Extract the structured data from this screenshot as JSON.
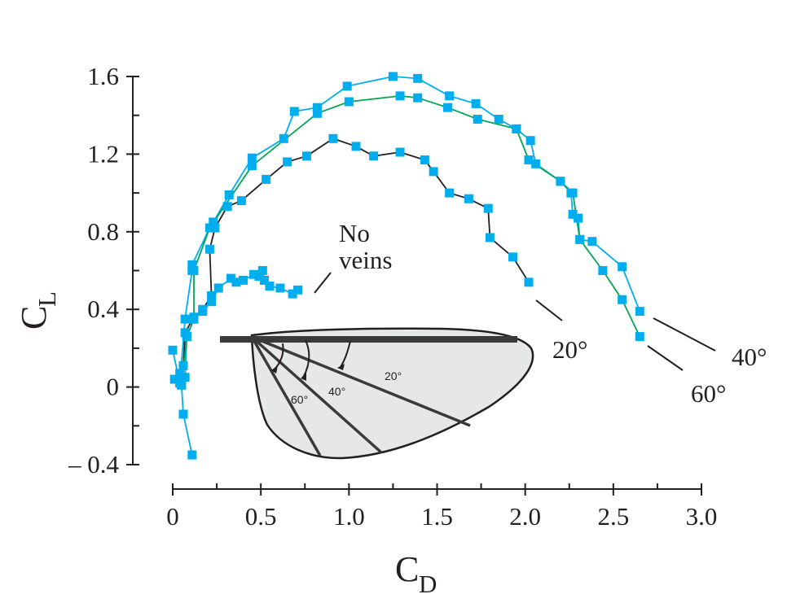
{
  "chart_data": {
    "type": "line",
    "title": "",
    "xlabel": "C",
    "xlabel_sub": "D",
    "ylabel": "C",
    "ylabel_sub": "L",
    "xlim": [
      0,
      3.0
    ],
    "ylim": [
      -0.4,
      1.6
    ],
    "x_ticks": [
      0,
      0.5,
      1.0,
      1.5,
      2.0,
      2.5,
      3.0
    ],
    "x_tick_labels": [
      "0",
      "0.5",
      "1.0",
      "1.5",
      "2.0",
      "2.5",
      "3.0"
    ],
    "x_minor_ticks": [
      0.25,
      0.75,
      1.25,
      1.75,
      2.25,
      2.75
    ],
    "y_ticks": [
      -0.4,
      0,
      0.4,
      0.8,
      1.2,
      1.6
    ],
    "y_tick_labels": [
      "– 0.4",
      "0",
      "0.4",
      "0.8",
      "1.2",
      "1.6"
    ],
    "y_minor_ticks": [
      -0.2,
      0.2,
      0.6,
      1.0,
      1.4
    ],
    "grid": false,
    "marker_color": "#00aeef",
    "series": [
      {
        "name": "No veins",
        "line_color": "#00aeef",
        "points": [
          [
            0.11,
            -0.35
          ],
          [
            0.06,
            -0.14
          ],
          [
            0.05,
            0.01
          ],
          [
            0.04,
            0.07
          ],
          [
            0.07,
            0.05
          ],
          [
            0.08,
            0.26
          ],
          [
            0.12,
            0.35
          ],
          [
            0.17,
            0.39
          ],
          [
            0.22,
            0.44
          ],
          [
            0.26,
            0.51
          ],
          [
            0.33,
            0.56
          ],
          [
            0.36,
            0.54
          ],
          [
            0.4,
            0.55
          ],
          [
            0.46,
            0.58
          ],
          [
            0.49,
            0.57
          ],
          [
            0.51,
            0.6
          ],
          [
            0.52,
            0.55
          ],
          [
            0.55,
            0.52
          ],
          [
            0.61,
            0.51
          ],
          [
            0.68,
            0.48
          ],
          [
            0.71,
            0.5
          ]
        ]
      },
      {
        "name": "20°",
        "line_color": "#231f20",
        "points": [
          [
            0.01,
            0.04
          ],
          [
            0.06,
            0.11
          ],
          [
            0.07,
            0.28
          ],
          [
            0.12,
            0.36
          ],
          [
            0.17,
            0.4
          ],
          [
            0.22,
            0.47
          ],
          [
            0.21,
            0.71
          ],
          [
            0.24,
            0.82
          ],
          [
            0.31,
            0.93
          ],
          [
            0.39,
            0.96
          ],
          [
            0.53,
            1.07
          ],
          [
            0.65,
            1.16
          ],
          [
            0.76,
            1.19
          ],
          [
            0.91,
            1.28
          ],
          [
            1.04,
            1.24
          ],
          [
            1.14,
            1.19
          ],
          [
            1.29,
            1.21
          ],
          [
            1.43,
            1.17
          ],
          [
            1.48,
            1.11
          ],
          [
            1.57,
            1.0
          ],
          [
            1.68,
            0.97
          ],
          [
            1.79,
            0.92
          ],
          [
            1.8,
            0.77
          ],
          [
            1.93,
            0.67
          ],
          [
            2.02,
            0.54
          ]
        ]
      },
      {
        "name": "40°",
        "line_color": "#00aeef",
        "points": [
          [
            0,
            0.19
          ],
          [
            0.04,
            0.02
          ],
          [
            0.07,
            0.35
          ],
          [
            0.11,
            0.6
          ],
          [
            0.11,
            0.63
          ],
          [
            0.21,
            0.82
          ],
          [
            0.23,
            0.85
          ],
          [
            0.32,
            0.99
          ],
          [
            0.45,
            1.18
          ],
          [
            0.63,
            1.28
          ],
          [
            0.69,
            1.42
          ],
          [
            0.82,
            1.44
          ],
          [
            0.99,
            1.55
          ],
          [
            1.25,
            1.6
          ],
          [
            1.39,
            1.59
          ],
          [
            1.57,
            1.5
          ],
          [
            1.72,
            1.46
          ],
          [
            1.85,
            1.38
          ],
          [
            1.95,
            1.33
          ],
          [
            2.03,
            1.27
          ],
          [
            2.06,
            1.15
          ],
          [
            2.2,
            1.06
          ],
          [
            2.26,
            1.0
          ],
          [
            2.27,
            0.89
          ],
          [
            2.3,
            0.87
          ],
          [
            2.31,
            0.76
          ],
          [
            2.38,
            0.75
          ],
          [
            2.55,
            0.62
          ],
          [
            2.65,
            0.39
          ]
        ]
      },
      {
        "name": "60°",
        "line_color": "#00a651",
        "points": [
          [
            0.05,
            0.01
          ],
          [
            0.08,
            0.26
          ],
          [
            0.12,
            0.35
          ],
          [
            0.12,
            0.6
          ],
          [
            0.21,
            0.82
          ],
          [
            0.45,
            1.14
          ],
          [
            0.82,
            1.41
          ],
          [
            1.0,
            1.47
          ],
          [
            1.29,
            1.5
          ],
          [
            1.39,
            1.49
          ],
          [
            1.56,
            1.44
          ],
          [
            1.73,
            1.38
          ],
          [
            1.95,
            1.33
          ],
          [
            2.02,
            1.17
          ],
          [
            2.2,
            1.06
          ],
          [
            2.27,
            1.0
          ],
          [
            2.31,
            0.76
          ],
          [
            2.44,
            0.6
          ],
          [
            2.55,
            0.45
          ],
          [
            2.65,
            0.26
          ]
        ]
      }
    ],
    "annotations": [
      {
        "text_lines": [
          "No",
          "veins"
        ],
        "series": "No veins"
      },
      {
        "text": "20°",
        "series": "20°"
      },
      {
        "text": "40°",
        "series": "40°"
      },
      {
        "text": "60°",
        "series": "60°"
      }
    ],
    "inset": {
      "description": "wing planform",
      "angle_labels": [
        "20°",
        "40°",
        "60°"
      ],
      "fill_color": "#e6e7e8",
      "outline_color": "#231f20"
    }
  }
}
